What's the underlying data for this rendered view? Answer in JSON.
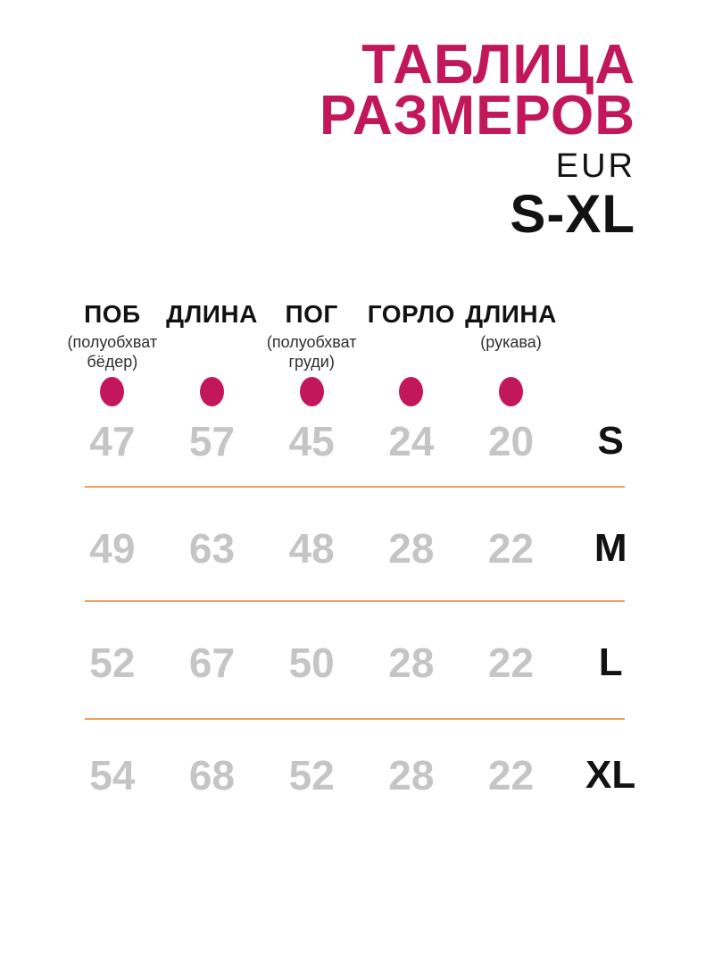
{
  "header": {
    "title_line1": "ТАБЛИЦА",
    "title_line2": "РАЗМЕРОВ",
    "standard": "EUR",
    "size_range": "S-XL"
  },
  "theme": {
    "accent": "#C2185B",
    "divider": "#ECA05C",
    "value_gray": "#C5C5C5",
    "text_dark": "#121212",
    "sub_text": "#2F2F2F"
  },
  "chart_data": {
    "type": "table",
    "title": "ТАБЛИЦА РАЗМЕРОВ",
    "standard": "EUR",
    "size_range": "S-XL",
    "columns": [
      {
        "label": "ПОБ",
        "sublabel": "(полуобхват бёдер)"
      },
      {
        "label": "ДЛИНА",
        "sublabel": ""
      },
      {
        "label": "ПОГ",
        "sublabel": "(полуобхват груди)"
      },
      {
        "label": "ГОРЛО",
        "sublabel": ""
      },
      {
        "label": "ДЛИНА",
        "sublabel": "(рукава)"
      }
    ],
    "rows": [
      {
        "size": "S",
        "values": [
          47,
          57,
          45,
          24,
          20
        ]
      },
      {
        "size": "M",
        "values": [
          49,
          63,
          48,
          28,
          22
        ]
      },
      {
        "size": "L",
        "values": [
          52,
          67,
          50,
          28,
          22
        ]
      },
      {
        "size": "XL",
        "values": [
          54,
          68,
          52,
          28,
          22
        ]
      }
    ],
    "legend_position": "none",
    "grid": "horizontal-dividers"
  }
}
